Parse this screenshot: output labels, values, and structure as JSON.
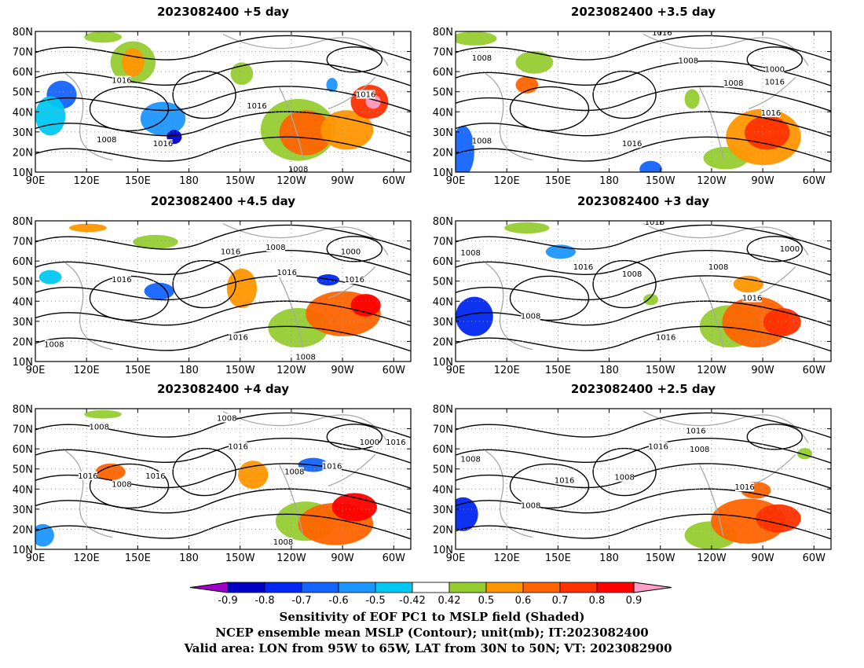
{
  "panels": [
    {
      "title": "2023082400  +5 day",
      "contour_labels": [
        "1016",
        "1016",
        "1008",
        "1016",
        "1016",
        "1008"
      ]
    },
    {
      "title": "2023082400  +3.5 day",
      "contour_labels": [
        "1016",
        "1008",
        "1008",
        "1000",
        "1008",
        "1016",
        "1016",
        "1008",
        "1016"
      ]
    },
    {
      "title": "2023082400  +4.5 day",
      "contour_labels": [
        "1016",
        "1008",
        "1016",
        "1000",
        "1016",
        "1016",
        "1008",
        "1016",
        "1008"
      ]
    },
    {
      "title": "2023082400  +3 day",
      "contour_labels": [
        "1016",
        "1008",
        "1016",
        "1008",
        "1000",
        "1008",
        "1016",
        "1008",
        "1016"
      ]
    },
    {
      "title": "2023082400  +4 day",
      "contour_labels": [
        "1008",
        "1008",
        "1016",
        "1000",
        "1016",
        "1016",
        "1016",
        "1008",
        "1008",
        "1016",
        "1008"
      ]
    },
    {
      "title": "2023082400  +2.5 day",
      "contour_labels": [
        "1016",
        "1008",
        "1016",
        "1008",
        "1008",
        "1016",
        "1008",
        "1016"
      ]
    }
  ],
  "axes": {
    "lat_labels": [
      "80N",
      "70N",
      "60N",
      "50N",
      "40N",
      "30N",
      "20N",
      "10N"
    ],
    "lon_labels": [
      "90E",
      "120E",
      "150E",
      "180",
      "150W",
      "120W",
      "90W",
      "60W"
    ],
    "lat_range": [
      10,
      80
    ],
    "lon_range_deg_east": [
      90,
      310
    ]
  },
  "colorbar": {
    "labels": [
      "-0.9",
      "-0.8",
      "-0.7",
      "-0.6",
      "-0.5",
      "-0.42",
      "0.42",
      "0.5",
      "0.6",
      "0.7",
      "0.8",
      "0.9"
    ],
    "colors": [
      "#a000c8",
      "#0000c8",
      "#0028f0",
      "#1464ff",
      "#1e96ff",
      "#00c8f0",
      "#ffffff",
      "#96cd32",
      "#ff9600",
      "#ff6400",
      "#ff3200",
      "#ff0000",
      "#ff9ec8"
    ]
  },
  "footer": {
    "line1": "Sensitivity of EOF PC1 to MSLP field (Shaded)",
    "line2": "NCEP ensemble mean MSLP (Contour); unit(mb); IT:2023082400",
    "line3": "Valid area: LON from 95W to 65W, LAT from 30N to 50N; VT: 2023082900"
  }
}
